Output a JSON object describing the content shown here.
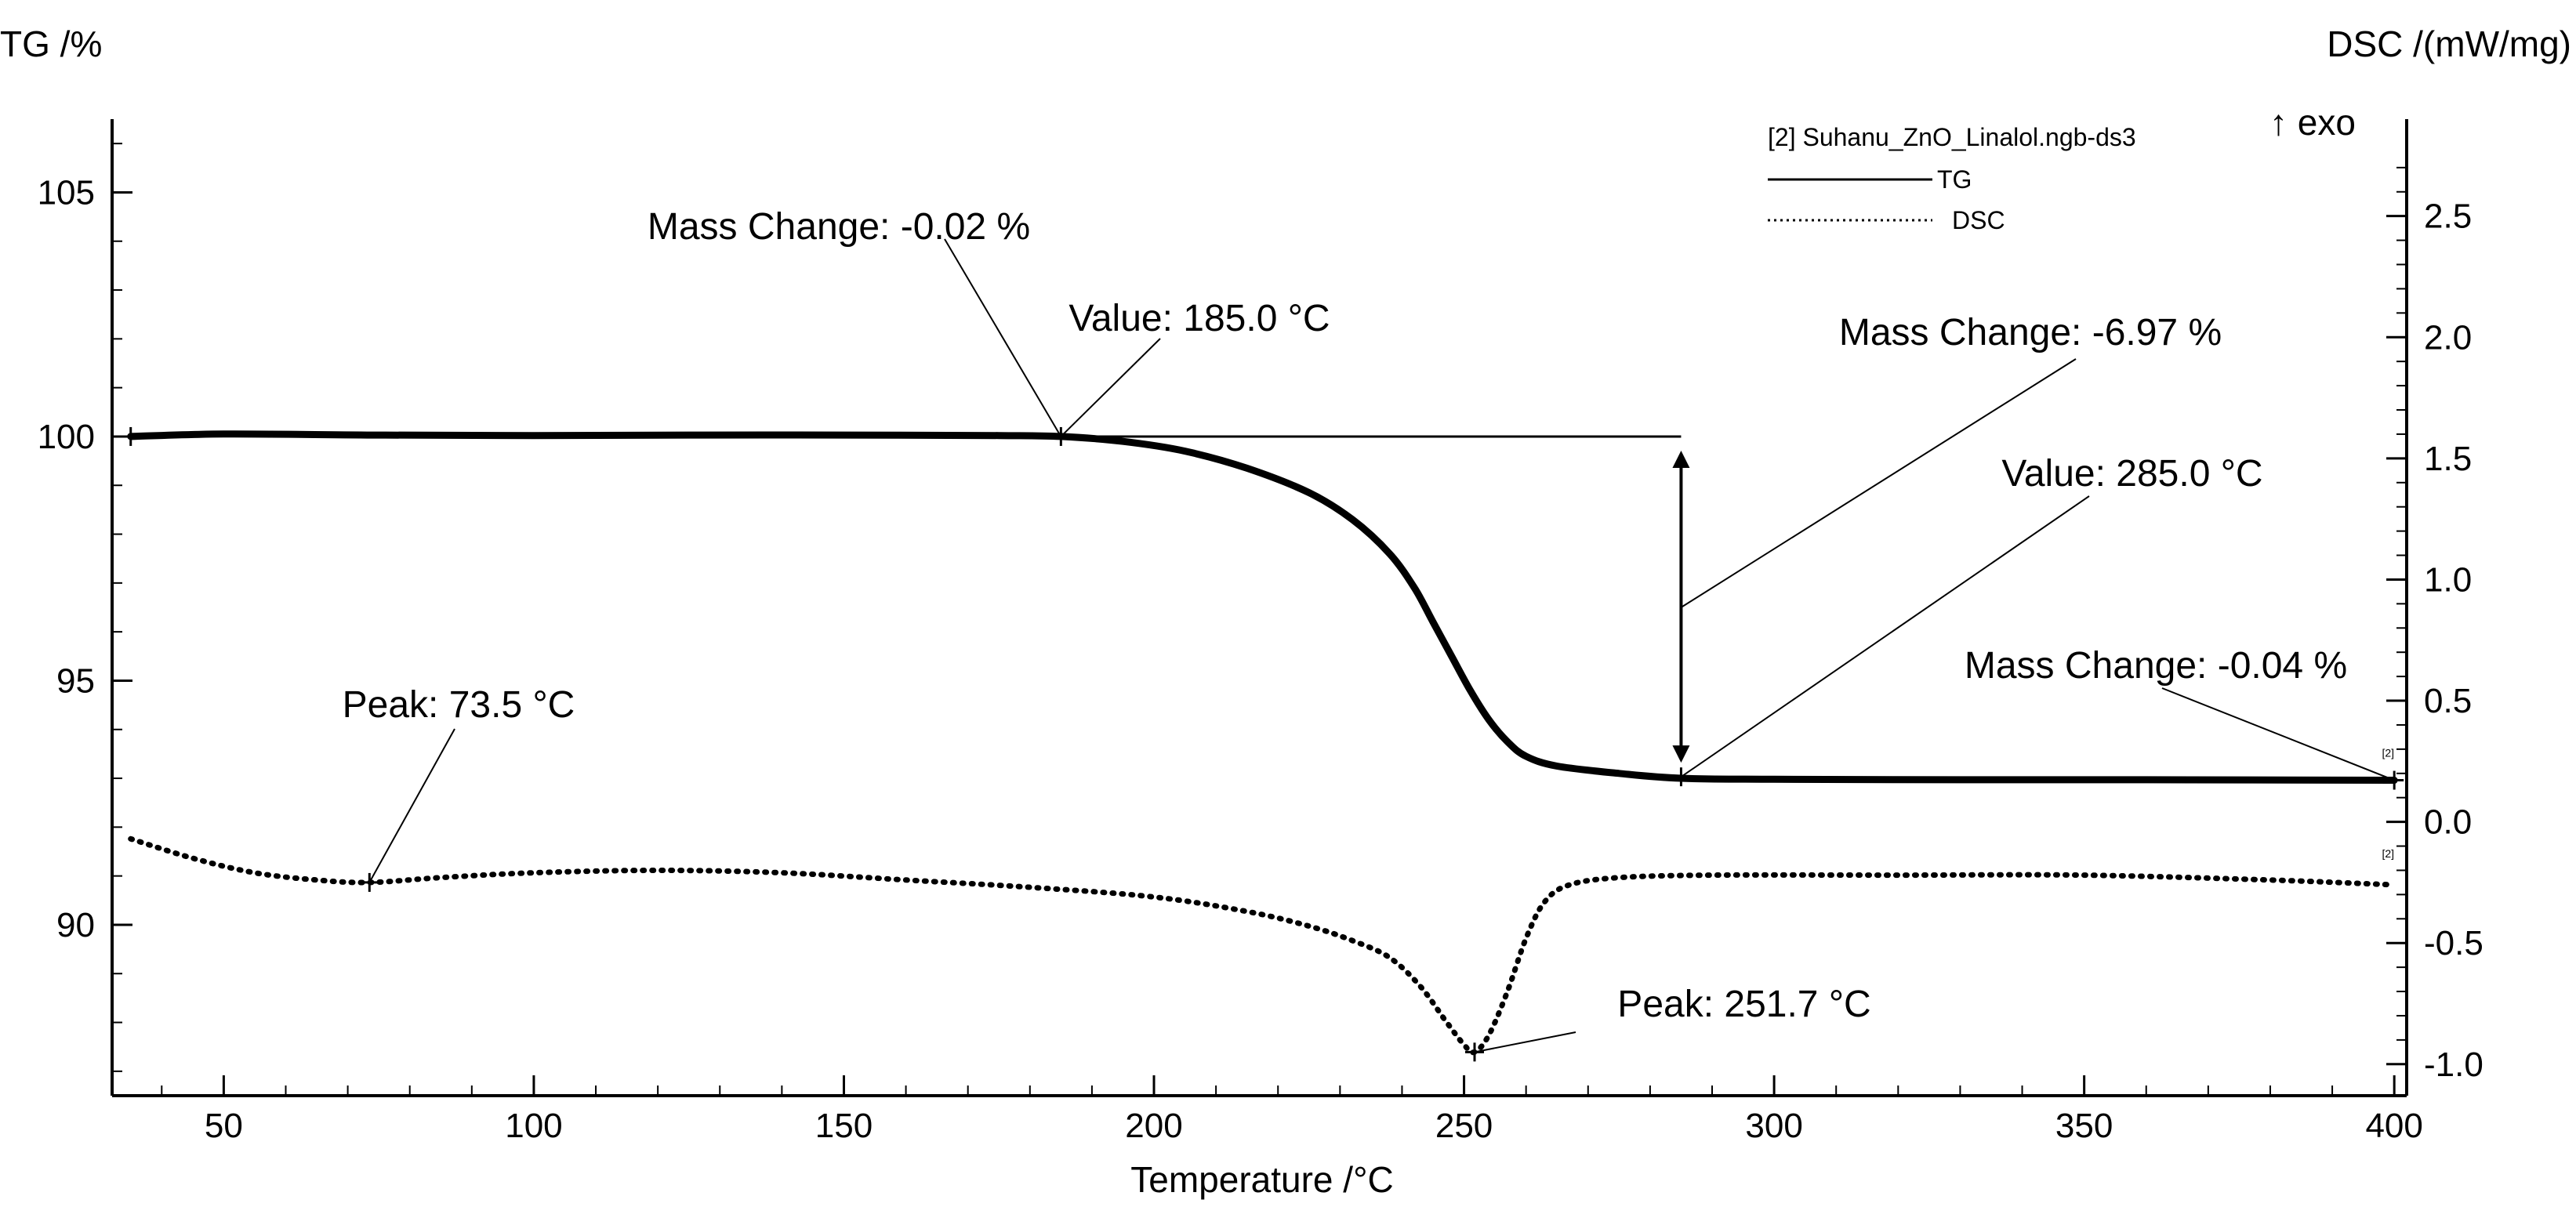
{
  "chart_data": {
    "type": "line",
    "title": "",
    "xlabel": "Temperature /°C",
    "ylabel_left": "TG /%",
    "ylabel_right": "DSC /(mW/mg)",
    "exo_label": "↑ exo",
    "xlim": [
      32,
      402
    ],
    "ylim_left": [
      86.5,
      106.5
    ],
    "ylim_right": [
      -1.13,
      2.9
    ],
    "x_ticks": [
      50,
      100,
      150,
      200,
      250,
      300,
      350,
      400
    ],
    "y_left_ticks": [
      90,
      95,
      100,
      105
    ],
    "y_right_ticks": [
      -1.0,
      -0.5,
      0.0,
      0.5,
      1.0,
      1.5,
      2.0,
      2.5
    ],
    "y_right_tick_labels": [
      "-1.0",
      "-0.5",
      "0.0",
      "0.5",
      "1.0",
      "1.5",
      "2.0",
      "2.5"
    ],
    "legend": {
      "file": "[2] Suhanu_ZnO_Linalol.ngb-ds3",
      "entries": [
        {
          "name": "TG",
          "style": "solid"
        },
        {
          "name": "DSC",
          "style": "dotted"
        }
      ]
    },
    "curve_tag": "[2]",
    "series": [
      {
        "name": "TG",
        "axis": "left",
        "style": "solid",
        "x": [
          35,
          50,
          75,
          100,
          125,
          150,
          175,
          185,
          195,
          205,
          215,
          225,
          232,
          238,
          242,
          245,
          248,
          251,
          254,
          257,
          260,
          265,
          275,
          285,
          300,
          330,
          360,
          400
        ],
        "y": [
          100.0,
          100.05,
          100.03,
          100.02,
          100.03,
          100.03,
          100.02,
          100.0,
          99.9,
          99.7,
          99.35,
          98.85,
          98.3,
          97.6,
          96.9,
          96.2,
          95.5,
          94.8,
          94.2,
          93.75,
          93.45,
          93.25,
          93.1,
          93.0,
          92.98,
          92.97,
          92.97,
          92.96
        ]
      },
      {
        "name": "DSC",
        "axis": "right",
        "style": "dotted",
        "x": [
          35,
          45,
          55,
          65,
          73.5,
          85,
          100,
          120,
          140,
          160,
          180,
          200,
          215,
          225,
          232,
          238,
          243,
          247,
          250,
          251.7,
          254,
          257,
          260,
          263,
          267,
          275,
          290,
          320,
          350,
          380,
          400
        ],
        "y": [
          -0.07,
          -0.15,
          -0.21,
          -0.24,
          -0.25,
          -0.23,
          -0.21,
          -0.2,
          -0.21,
          -0.24,
          -0.27,
          -0.31,
          -0.37,
          -0.43,
          -0.49,
          -0.56,
          -0.68,
          -0.82,
          -0.92,
          -0.95,
          -0.88,
          -0.7,
          -0.48,
          -0.33,
          -0.26,
          -0.23,
          -0.22,
          -0.22,
          -0.22,
          -0.24,
          -0.26
        ]
      }
    ],
    "annotations": [
      {
        "text": "Mass Change: -0.02 %",
        "at_x": 185,
        "at_y_left": 100.0
      },
      {
        "text": "Value: 185.0 °C",
        "at_x": 185,
        "at_y_left": 100.0
      },
      {
        "text": "Mass Change: -6.97 %",
        "at_x": 285,
        "at_y_left": 96.5
      },
      {
        "text": "Value: 285.0 °C",
        "at_x": 285,
        "at_y_left": 93.0
      },
      {
        "text": "Mass Change: -0.04 %",
        "at_x": 400,
        "at_y_left": 92.96
      },
      {
        "text": "Peak: 73.5 °C",
        "at_x": 73.5,
        "at_y_right": -0.25
      },
      {
        "text": "Peak: 251.7 °C",
        "at_x": 251.7,
        "at_y_right": -0.95
      }
    ],
    "mass_step": {
      "x": 285,
      "from_y": 100.0,
      "to_y": 93.03
    }
  }
}
